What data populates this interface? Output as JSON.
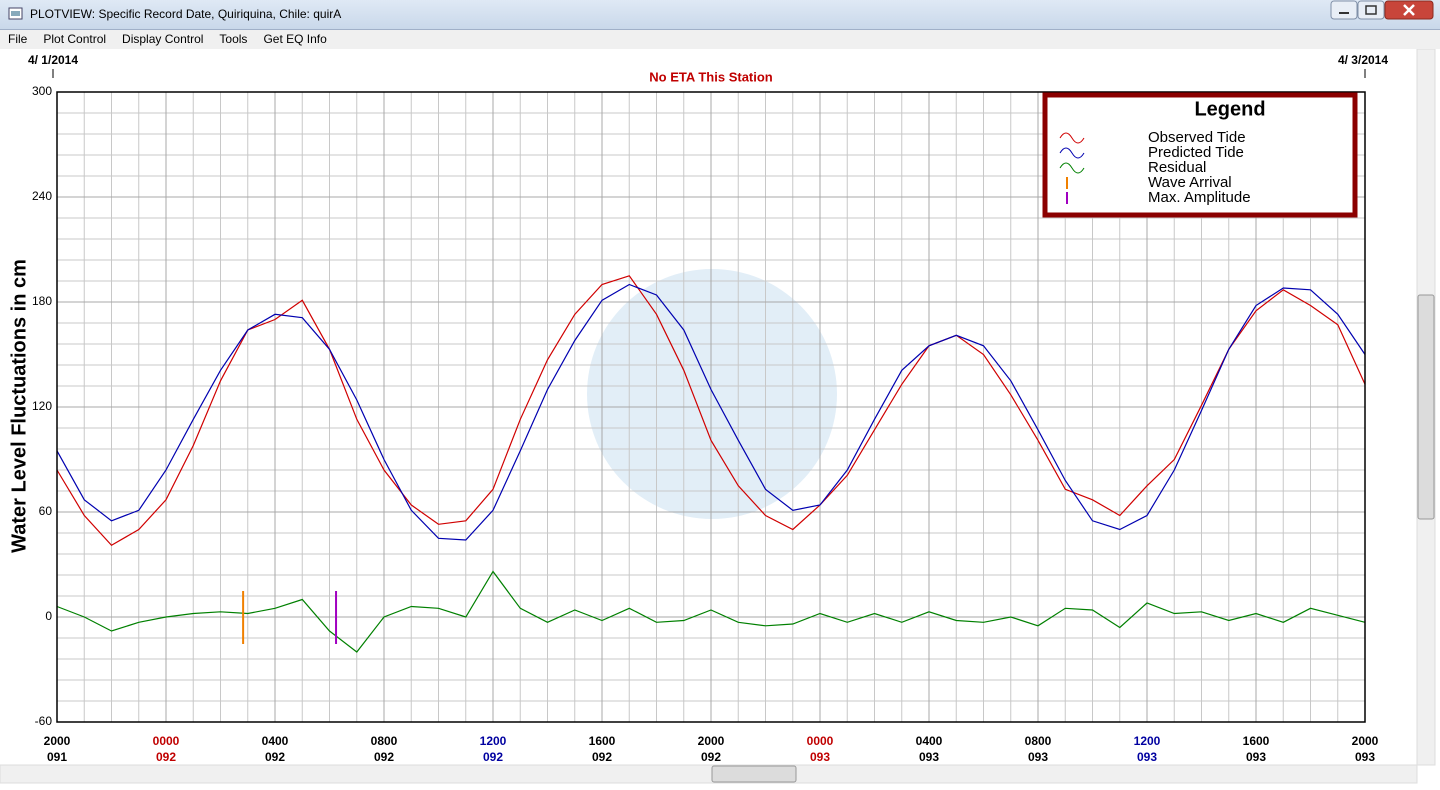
{
  "window": {
    "title": "PLOTVIEW: Specific Record Date, Quiriquina, Chile: quirA",
    "menu": [
      "File",
      "Plot Control",
      "Display Control",
      "Tools",
      "Get EQ Info"
    ]
  },
  "chart_data": {
    "type": "line",
    "start_date": "4/ 1/2014",
    "end_date": "4/ 3/2014",
    "title": "No ETA This Station",
    "y_label": "Water Level Fluctuations in cm",
    "legend_title": "Legend",
    "legend": "top-right",
    "grid": true,
    "ylim": [
      -60,
      300
    ],
    "yticks": [
      -60,
      0,
      60,
      120,
      180,
      240,
      300
    ],
    "xlim": [
      0,
      48
    ],
    "xticks": [
      {
        "value": 0,
        "label": "2000",
        "day": "091",
        "color": "#000000"
      },
      {
        "value": 4,
        "label": "0000",
        "day": "092",
        "color": "#c00000"
      },
      {
        "value": 8,
        "label": "0400",
        "day": "092",
        "color": "#000000"
      },
      {
        "value": 12,
        "label": "0800",
        "day": "092",
        "color": "#000000"
      },
      {
        "value": 16,
        "label": "1200",
        "day": "092",
        "color": "#0000a0"
      },
      {
        "value": 20,
        "label": "1600",
        "day": "092",
        "color": "#000000"
      },
      {
        "value": 24,
        "label": "2000",
        "day": "092",
        "color": "#000000"
      },
      {
        "value": 28,
        "label": "0000",
        "day": "093",
        "color": "#c00000"
      },
      {
        "value": 32,
        "label": "0400",
        "day": "093",
        "color": "#000000"
      },
      {
        "value": 36,
        "label": "0800",
        "day": "093",
        "color": "#000000"
      },
      {
        "value": 40,
        "label": "1200",
        "day": "093",
        "color": "#0000a0"
      },
      {
        "value": 44,
        "label": "1600",
        "day": "093",
        "color": "#000000"
      },
      {
        "value": 48,
        "label": "2000",
        "day": "093",
        "color": "#000000"
      }
    ],
    "x": [
      0,
      1,
      2,
      3,
      4,
      5,
      6,
      7,
      8,
      9,
      10,
      11,
      12,
      13,
      14,
      15,
      16,
      17,
      18,
      19,
      20,
      21,
      22,
      23,
      24,
      25,
      26,
      27,
      28,
      29,
      30,
      31,
      32,
      33,
      34,
      35,
      36,
      37,
      38,
      39,
      40,
      41,
      42,
      43,
      44,
      45,
      46,
      47,
      48
    ],
    "series": [
      {
        "name": "Observed Tide",
        "color": "#d00000",
        "values": [
          84,
          58,
          41,
          50,
          67,
          98,
          135,
          164,
          170,
          181,
          153,
          113,
          84,
          64,
          53,
          55,
          73,
          113,
          147,
          173,
          190,
          195,
          173,
          141,
          101,
          75,
          58,
          50,
          64,
          81,
          107,
          133,
          155,
          161,
          150,
          127,
          101,
          73,
          67,
          58,
          75,
          90,
          121,
          153,
          175,
          187,
          178,
          167,
          133
        ]
      },
      {
        "name": "Predicted Tide",
        "color": "#0000b0",
        "values": [
          95,
          67,
          55,
          61,
          84,
          113,
          141,
          164,
          173,
          171,
          153,
          124,
          90,
          61,
          45,
          44,
          61,
          95,
          130,
          158,
          181,
          190,
          184,
          164,
          130,
          101,
          73,
          61,
          64,
          84,
          113,
          141,
          155,
          161,
          155,
          135,
          107,
          78,
          55,
          50,
          58,
          84,
          118,
          153,
          178,
          188,
          187,
          173,
          150
        ]
      },
      {
        "name": "Residual",
        "color": "#008000",
        "values": [
          6,
          0,
          -8,
          -3,
          0,
          2,
          3,
          2,
          5,
          10,
          -8,
          -20,
          0,
          6,
          5,
          0,
          26,
          5,
          -3,
          4,
          -2,
          5,
          -3,
          -2,
          4,
          -3,
          -5,
          -4,
          2,
          -3,
          2,
          -3,
          3,
          -2,
          -3,
          0,
          -5,
          5,
          4,
          -6,
          8,
          2,
          3,
          -2,
          2,
          -3,
          5,
          1,
          -3
        ]
      }
    ],
    "markers": [
      {
        "name": "Wave Arrival",
        "color": "#f08000",
        "x": 6.83
      },
      {
        "name": "Max. Amplitude",
        "color": "#a000c0",
        "x": 10.24
      }
    ]
  }
}
